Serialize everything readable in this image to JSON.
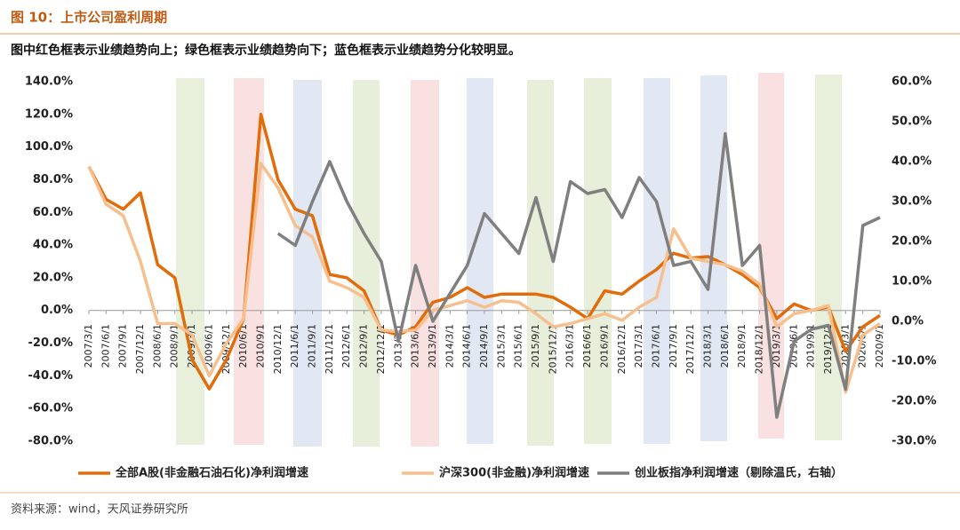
{
  "header": {
    "title": "图 10：上市公司盈利周期"
  },
  "chart_data": {
    "type": "line",
    "subtitle": "图中红色框表示业绩趋势向上；绿色框表示业绩趋势向下；蓝色框表示业绩趋势分化较明显。",
    "categories": [
      "2007/3/1",
      "2007/6/1",
      "2007/9/1",
      "2007/12/1",
      "2008/6/1",
      "2008/9/1",
      "2009/3/1",
      "2009/6/1",
      "2009/12/1",
      "2010/6/1",
      "2010/9/1",
      "2010/12/1",
      "2011/6/1",
      "2011/9/1",
      "2011/12/1",
      "2012/6/1",
      "2012/9/1",
      "2012/12/1",
      "2013/3/1",
      "2013/6/1",
      "2013/9/1",
      "2014/3/1",
      "2014/6/1",
      "2014/9/1",
      "2015/3/1",
      "2015/6/1",
      "2015/9/1",
      "2015/12/1",
      "2016/3/1",
      "2016/6/1",
      "2016/9/1",
      "2016/12/1",
      "2017/3/1",
      "2017/6/1",
      "2017/9/1",
      "2017/12/1",
      "2018/3/1",
      "2018/6/1",
      "2018/9/1",
      "2018/12/1",
      "2019/3/1",
      "2019/6/1",
      "2019/9/1",
      "2019/12/1",
      "2020/3/1",
      "2020/6/1",
      "2020/9/1"
    ],
    "series": [
      {
        "name": "全部A股(非金融石油石化)净利润增速",
        "color": "#e36c0a",
        "values": [
          88,
          68,
          62,
          72,
          28,
          20,
          -30,
          -48,
          -30,
          -5,
          120,
          80,
          62,
          58,
          22,
          20,
          12,
          -12,
          -15,
          -10,
          5,
          8,
          14,
          8,
          10,
          10,
          10,
          8,
          2,
          -5,
          12,
          10,
          18,
          25,
          35,
          32,
          33,
          28,
          22,
          14,
          -5,
          4,
          0,
          2,
          -25,
          -10,
          -3
        ]
      },
      {
        "name": "沪深300(非金融)净利润增速",
        "color": "#f7bf8e",
        "values": [
          88,
          65,
          58,
          30,
          -8,
          -8,
          -15,
          -40,
          -20,
          -5,
          90,
          75,
          52,
          45,
          18,
          14,
          8,
          -12,
          -13,
          -12,
          0,
          3,
          6,
          2,
          6,
          5,
          -2,
          -10,
          -8,
          -5,
          -2,
          -6,
          2,
          8,
          50,
          32,
          30,
          28,
          24,
          16,
          -10,
          -2,
          0,
          3,
          -50,
          -15,
          -8
        ]
      },
      {
        "name": "创业板指净利润增速（剔除温氏，右轴）",
        "color": "#7f7f7f",
        "axis": "y2",
        "values": [
          null,
          null,
          null,
          null,
          null,
          null,
          null,
          null,
          null,
          null,
          null,
          22,
          19,
          30,
          40,
          30,
          22,
          15,
          -5,
          14,
          0,
          7,
          14,
          27,
          22,
          17,
          31,
          15,
          35,
          32,
          33,
          26,
          36,
          30,
          14,
          15,
          8,
          47,
          14,
          19,
          -24,
          -5,
          -2,
          -1,
          -17,
          24,
          26
        ]
      }
    ],
    "ylim": [
      -80,
      140
    ],
    "yticks": [
      {
        "value": -80,
        "label": "-80.0%"
      },
      {
        "value": -60,
        "label": "-60.0%"
      },
      {
        "value": -40,
        "label": "-40.0%"
      },
      {
        "value": -20,
        "label": "-20.0%"
      },
      {
        "value": 0,
        "label": "0.0%"
      },
      {
        "value": 20,
        "label": "20.0%"
      },
      {
        "value": 40,
        "label": "40.0%"
      },
      {
        "value": 60,
        "label": "60.0%"
      },
      {
        "value": 80,
        "label": "80.0%"
      },
      {
        "value": 100,
        "label": "100.0%"
      },
      {
        "value": 120,
        "label": "120.0%"
      },
      {
        "value": 140,
        "label": "140.0%"
      }
    ],
    "y2lim": [
      -30,
      60
    ],
    "y2ticks": [
      {
        "value": -30,
        "label": "-30.0%"
      },
      {
        "value": -20,
        "label": "-20.0%"
      },
      {
        "value": -10,
        "label": "-10.0%"
      },
      {
        "value": 0,
        "label": "0.0%"
      },
      {
        "value": 10,
        "label": "10.0%"
      },
      {
        "value": 20,
        "label": "20.0%"
      },
      {
        "value": 30,
        "label": "30.0%"
      },
      {
        "value": 40,
        "label": "40.0%"
      },
      {
        "value": 50,
        "label": "50.0%"
      },
      {
        "value": 60,
        "label": "60.0%"
      }
    ],
    "legend": "bottom"
  },
  "footer": {
    "source": "资料来源：wind，天风证券研究所"
  }
}
